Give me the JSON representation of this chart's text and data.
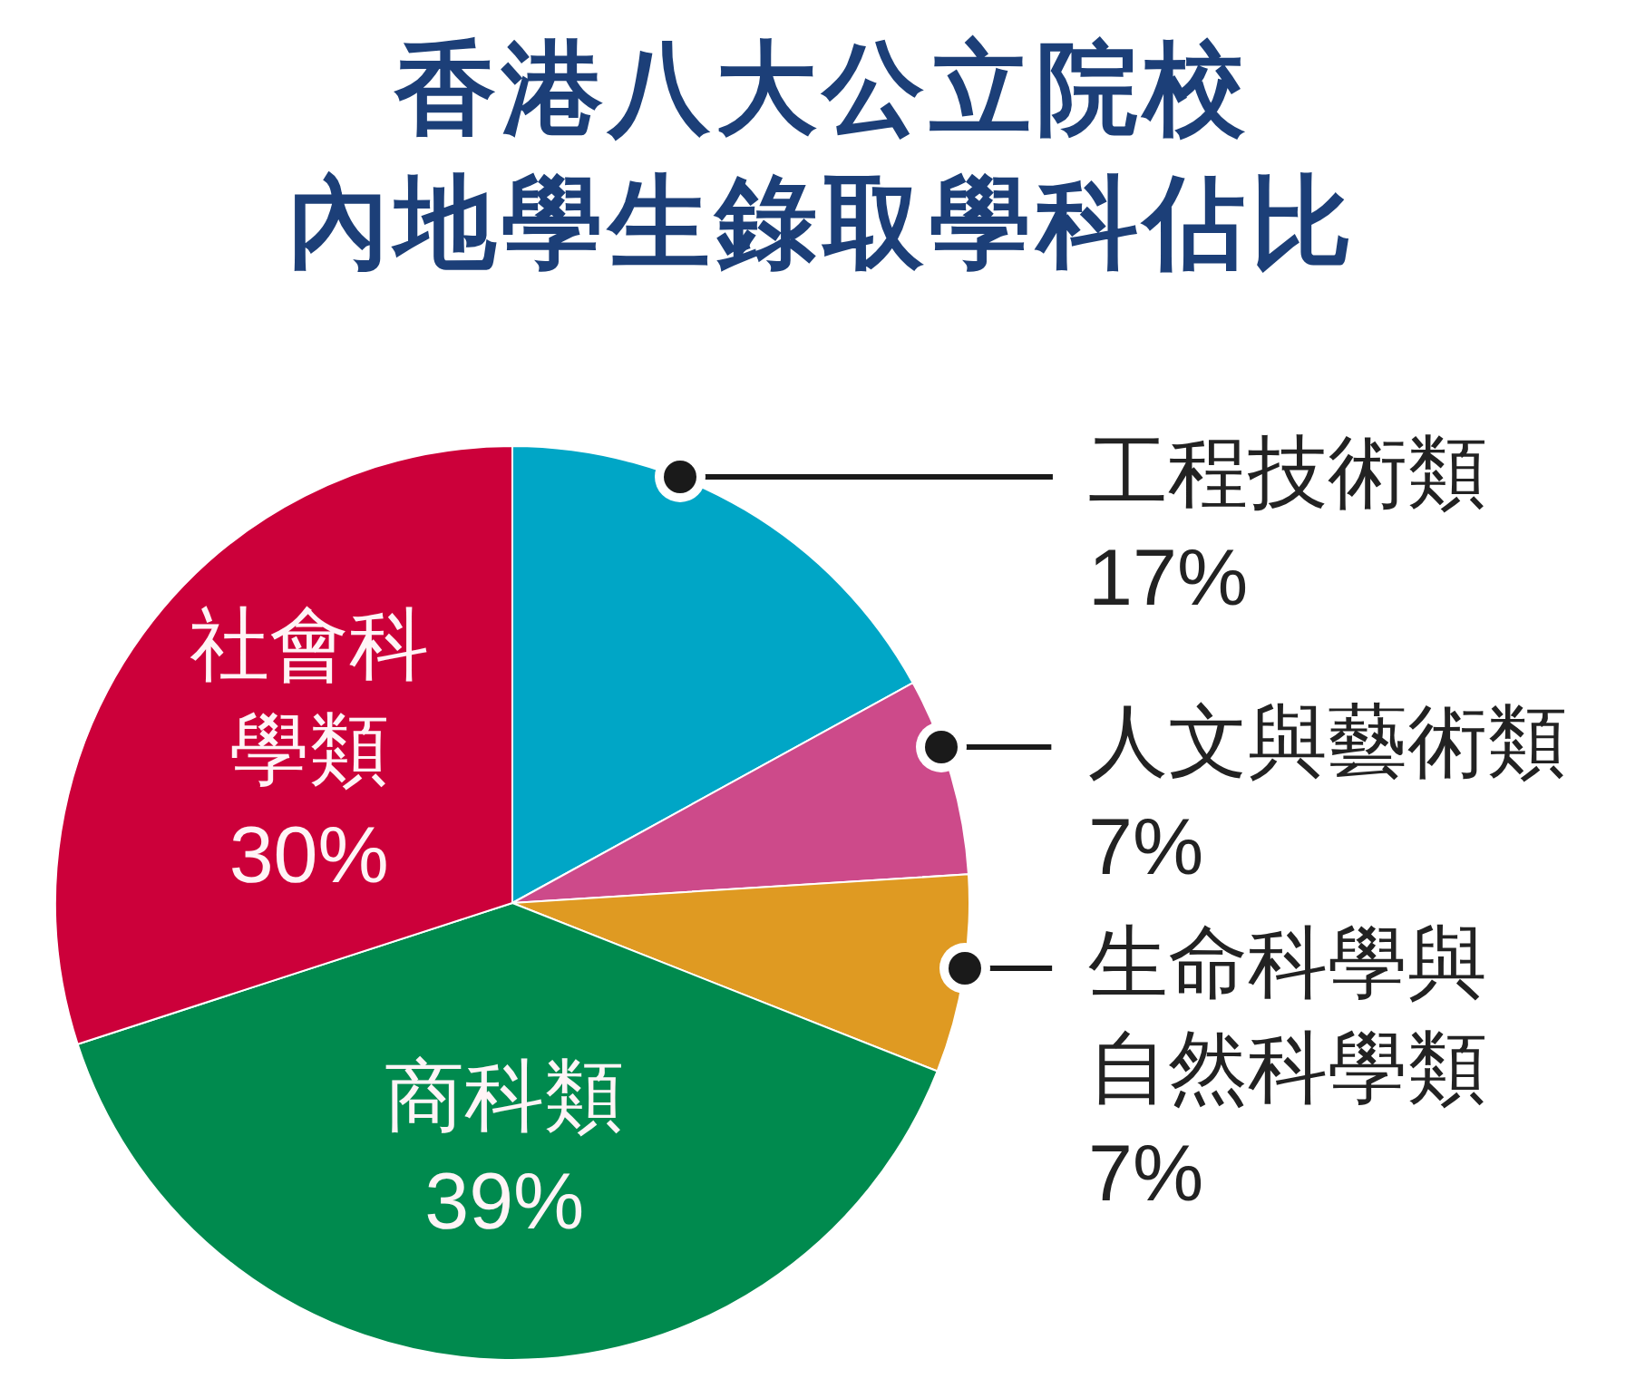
{
  "chart_data": {
    "type": "pie",
    "title": "香港八大公立院校內地學生錄取學科佔比",
    "categories": [
      "工程技術類",
      "人文與藝術類",
      "生命科學與自然科學類",
      "商科類",
      "社會科學類"
    ],
    "values": [
      17,
      7,
      7,
      39,
      30
    ],
    "colors": [
      "#00a6c6",
      "#cd4a8a",
      "#df9a22",
      "#008a4e",
      "#cc003a"
    ],
    "value_labels": [
      "17%",
      "7%",
      "7%",
      "39%",
      "30%"
    ]
  }
}
